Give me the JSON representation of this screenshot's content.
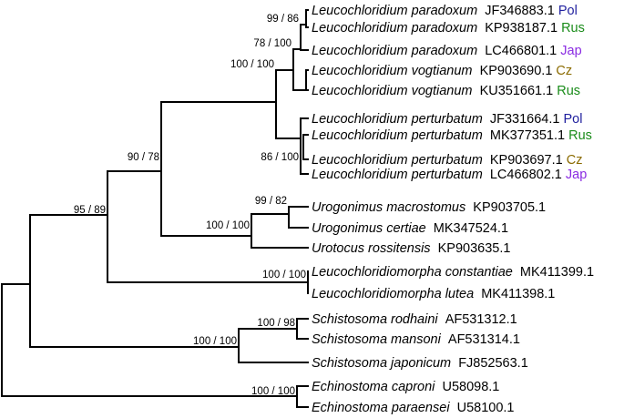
{
  "tips": [
    {
      "species": "Leucochloridium paradoxum",
      "accession": "JF346883.1",
      "country": "Pol",
      "country_color": "#1f1f9e"
    },
    {
      "species": "Leucochloridium paradoxum",
      "accession": "KP938187.1",
      "country": "Rus",
      "country_color": "#1a8c1a"
    },
    {
      "species": "Leucochloridium paradoxum",
      "accession": "LC466801.1",
      "country": "Jap",
      "country_color": "#8a2be2"
    },
    {
      "species": "Leucochloridium vogtianum",
      "accession": "KP903690.1",
      "country": "Cz",
      "country_color": "#8b6b00"
    },
    {
      "species": "Leucochloridium vogtianum",
      "accession": "KU351661.1",
      "country": "Rus",
      "country_color": "#1a8c1a"
    },
    {
      "species": "Leucochloridium perturbatum",
      "accession": "JF331664.1",
      "country": "Pol",
      "country_color": "#1f1f9e"
    },
    {
      "species": "Leucochloridium perturbatum",
      "accession": "MK377351.1",
      "country": "Rus",
      "country_color": "#1a8c1a"
    },
    {
      "species": "Leucochloridium perturbatum",
      "accession": "KP903697.1",
      "country": "Cz",
      "country_color": "#8b6b00"
    },
    {
      "species": "Leucochloridium perturbatum",
      "accession": "LC466802.1",
      "country": "Jap",
      "country_color": "#8a2be2"
    },
    {
      "species": "Urogonimus macrostomus",
      "accession": "KP903705.1",
      "country": "",
      "country_color": ""
    },
    {
      "species": "Urogonimus certiae",
      "accession": "MK347524.1",
      "country": "",
      "country_color": ""
    },
    {
      "species": "Urotocus rossitensis",
      "accession": "KP903635.1",
      "country": "",
      "country_color": ""
    },
    {
      "species": "Leucochloridiomorpha constantiae",
      "accession": "MK411399.1",
      "country": "",
      "country_color": ""
    },
    {
      "species": "Leucochloridiomorpha lutea",
      "accession": "MK411398.1",
      "country": "",
      "country_color": ""
    },
    {
      "species": "Schistosoma rodhaini",
      "accession": "AF531312.1",
      "country": "",
      "country_color": ""
    },
    {
      "species": "Schistosoma mansoni",
      "accession": "AF531314.1",
      "country": "",
      "country_color": ""
    },
    {
      "species": "Schistosoma japonicum",
      "accession": "FJ852563.1",
      "country": "",
      "country_color": ""
    },
    {
      "species": "Echinostoma caproni",
      "accession": "U58098.1",
      "country": "",
      "country_color": ""
    },
    {
      "species": "Echinostoma paraensei",
      "accession": "U58100.1",
      "country": "",
      "country_color": ""
    }
  ],
  "support_values": [
    "99 / 86",
    "78 / 100",
    "100 / 100",
    "86 / 100",
    "90 / 78",
    "99 / 82",
    "100 / 100",
    "95 / 89",
    "100 / 100",
    "100 / 98",
    "100 / 100",
    "100 / 100"
  ],
  "colors": {
    "branch": "#000000",
    "pol": "#1f1f9e",
    "rus": "#1a8c1a",
    "jap": "#8a2be2",
    "cz": "#8b6b00"
  }
}
